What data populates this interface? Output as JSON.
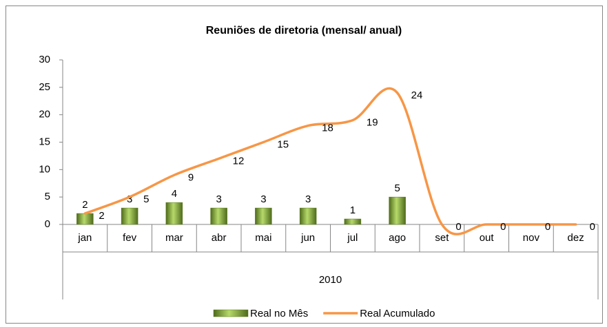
{
  "chart_data": {
    "type": "bar_line",
    "title": "Reuniões de diretoria (mensal/ anual)",
    "categories": [
      "jan",
      "fev",
      "mar",
      "abr",
      "mai",
      "jun",
      "jul",
      "ago",
      "set",
      "out",
      "nov",
      "dez"
    ],
    "group_label": "2010",
    "series": [
      {
        "name": "Real no Mês",
        "type": "bar",
        "color": "#8fb83a",
        "values": [
          2,
          3,
          4,
          3,
          3,
          3,
          1,
          5,
          null,
          null,
          null,
          null
        ]
      },
      {
        "name": "Real Acumulado",
        "type": "line",
        "color": "#f79646",
        "values": [
          2,
          5,
          9,
          12,
          15,
          18,
          19,
          24,
          0,
          0,
          0,
          0
        ]
      }
    ],
    "ylim": [
      0,
      30
    ],
    "yticks": [
      0,
      5,
      10,
      15,
      20,
      25,
      30
    ],
    "grid": false,
    "legend": "bottom"
  }
}
